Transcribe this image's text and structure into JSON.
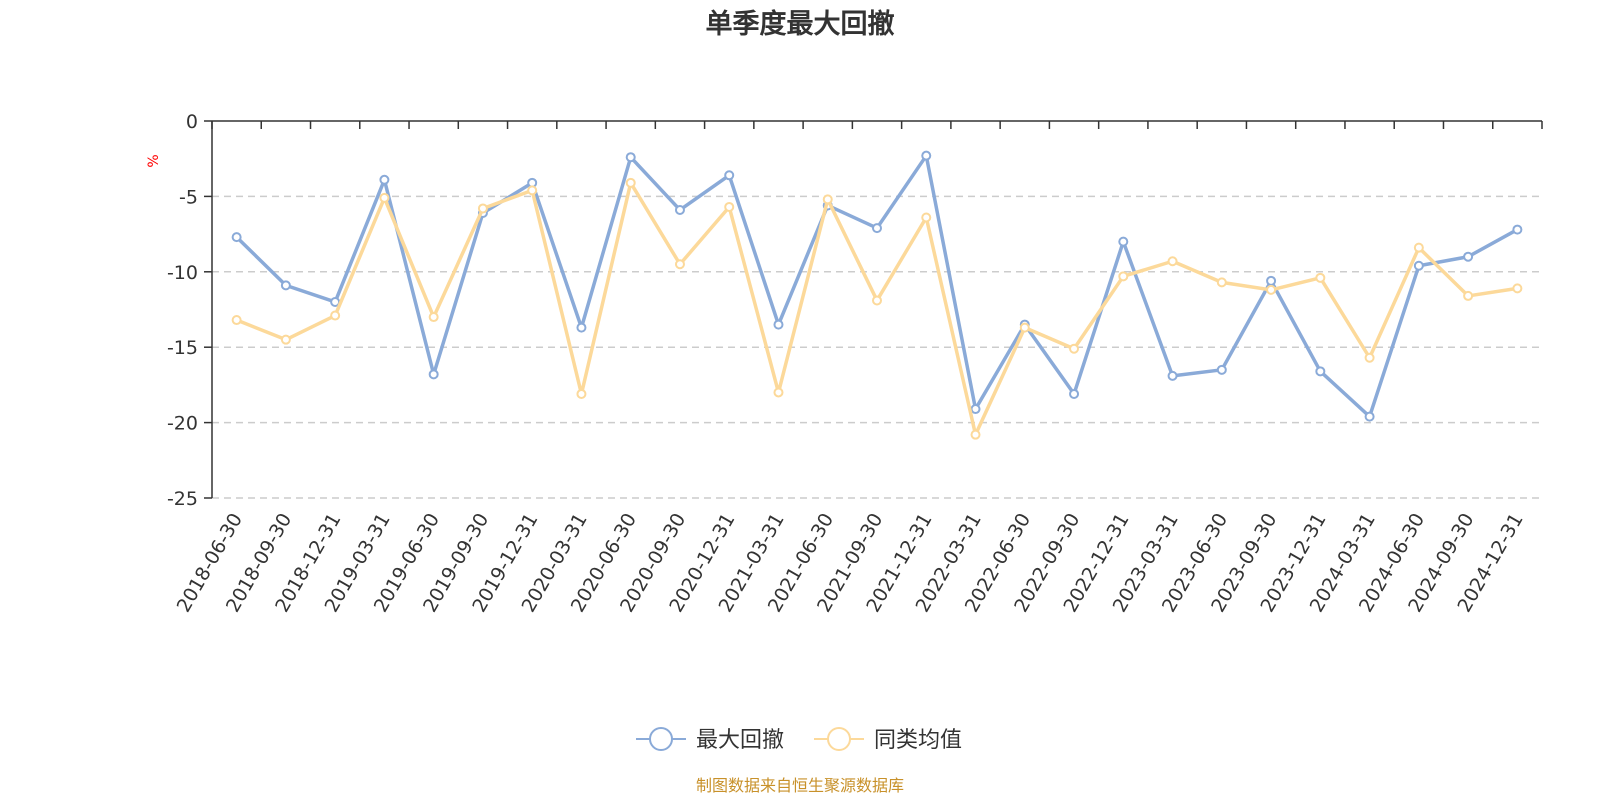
{
  "chart_data": {
    "type": "line",
    "title": "单季度最大回撤",
    "ylabel": "%",
    "xlabel": "",
    "ylim": [
      -25,
      0
    ],
    "yticks": [
      0,
      -5,
      -10,
      -15,
      -20,
      -25
    ],
    "grid": true,
    "legend_position": "bottom-center",
    "categories": [
      "2018-06-30",
      "2018-09-30",
      "2018-12-31",
      "2019-03-31",
      "2019-06-30",
      "2019-09-30",
      "2019-12-31",
      "2020-03-31",
      "2020-06-30",
      "2020-09-30",
      "2020-12-31",
      "2021-03-31",
      "2021-06-30",
      "2021-09-30",
      "2021-12-31",
      "2022-03-31",
      "2022-06-30",
      "2022-09-30",
      "2022-12-31",
      "2023-03-31",
      "2023-06-30",
      "2023-09-30",
      "2023-12-31",
      "2024-03-31",
      "2024-06-30",
      "2024-09-30",
      "2024-12-31"
    ],
    "series": [
      {
        "name": "最大回撤",
        "color": "#8aaad8",
        "values": [
          -7.7,
          -10.9,
          -12.0,
          -3.9,
          -16.8,
          -6.1,
          -4.1,
          -13.7,
          -2.4,
          -5.9,
          -3.6,
          -13.5,
          -5.6,
          -7.1,
          -2.3,
          -19.1,
          -13.5,
          -18.1,
          -8.0,
          -16.9,
          -16.5,
          -10.6,
          -16.6,
          -19.6,
          -9.6,
          -9.0,
          -7.2
        ]
      },
      {
        "name": "同类均值",
        "color": "#fcd99a",
        "values": [
          -13.2,
          -14.5,
          -12.9,
          -5.1,
          -13.0,
          -5.8,
          -4.6,
          -18.1,
          -4.1,
          -9.5,
          -5.7,
          -18.0,
          -5.2,
          -11.9,
          -6.4,
          -20.8,
          -13.7,
          -15.1,
          -10.3,
          -9.3,
          -10.7,
          -11.2,
          -10.4,
          -15.7,
          -8.4,
          -11.6,
          -11.1
        ]
      }
    ]
  },
  "source_text": "制图数据来自恒生聚源数据库"
}
